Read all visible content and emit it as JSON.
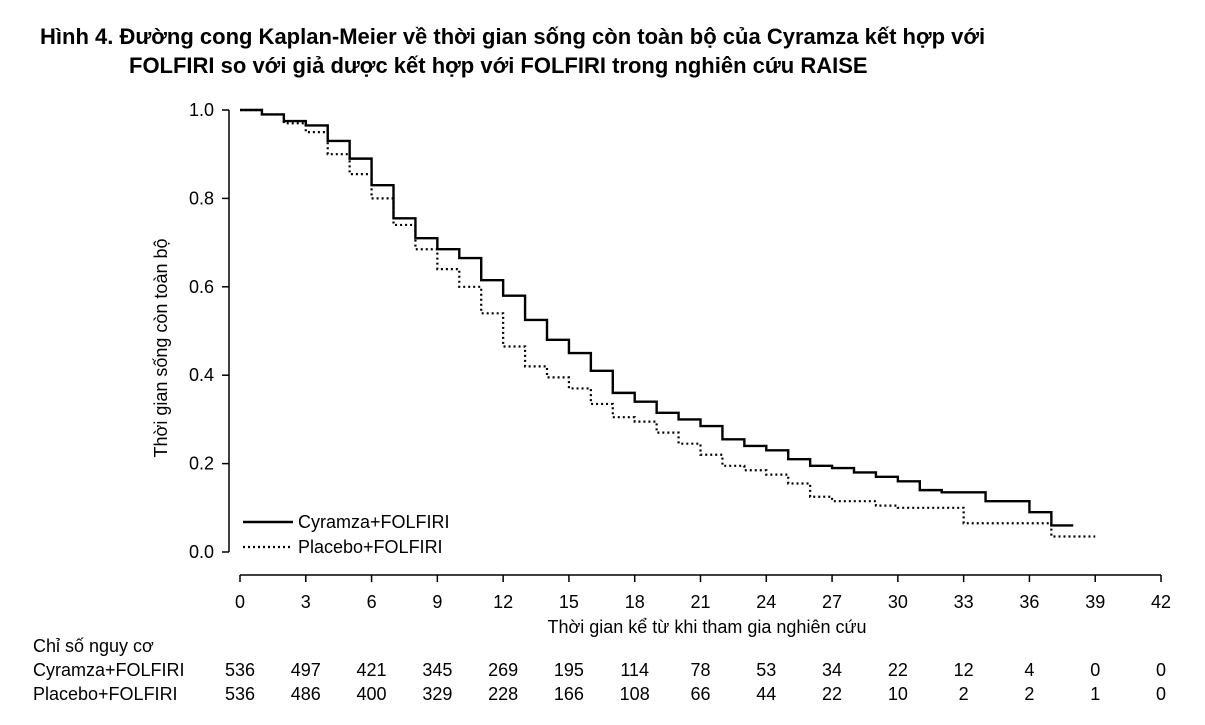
{
  "title": {
    "line1": "Hình 4. Đường cong Kaplan-Meier về thời gian sống còn toàn bộ của Cyramza kết hợp với",
    "line2": "FOLFIRI so với giả dược kết hợp với FOLFIRI trong nghiên cứu RAISE"
  },
  "chart_data": {
    "type": "line",
    "step": true,
    "xlabel": "Thời gian kể từ khi tham gia nghiên cứu",
    "ylabel": "Thời gian sống còn toàn bộ",
    "xlim": [
      0,
      42
    ],
    "ylim": [
      0,
      1.0
    ],
    "x_ticks": [
      "0",
      "3",
      "6",
      "9",
      "12",
      "15",
      "18",
      "21",
      "24",
      "27",
      "30",
      "33",
      "36",
      "39",
      "42"
    ],
    "y_ticks": [
      "0.0",
      "0.2",
      "0.4",
      "0.6",
      "0.8",
      "1.0"
    ],
    "legend_position": "bottom-left",
    "series": [
      {
        "name": "Cyramza+FOLFIRI",
        "style": "solid",
        "points": [
          [
            0,
            1.0
          ],
          [
            0.5,
            1.0
          ],
          [
            1,
            0.99
          ],
          [
            2,
            0.975
          ],
          [
            3,
            0.965
          ],
          [
            4,
            0.93
          ],
          [
            5,
            0.89
          ],
          [
            6,
            0.83
          ],
          [
            7,
            0.755
          ],
          [
            8,
            0.71
          ],
          [
            9,
            0.685
          ],
          [
            10,
            0.665
          ],
          [
            11,
            0.615
          ],
          [
            12,
            0.58
          ],
          [
            13,
            0.525
          ],
          [
            14,
            0.48
          ],
          [
            15,
            0.45
          ],
          [
            16,
            0.41
          ],
          [
            17,
            0.36
          ],
          [
            18,
            0.34
          ],
          [
            19,
            0.315
          ],
          [
            20,
            0.3
          ],
          [
            21,
            0.285
          ],
          [
            22,
            0.255
          ],
          [
            23,
            0.24
          ],
          [
            24,
            0.23
          ],
          [
            25,
            0.21
          ],
          [
            26,
            0.195
          ],
          [
            27,
            0.19
          ],
          [
            28,
            0.18
          ],
          [
            29,
            0.17
          ],
          [
            30,
            0.16
          ],
          [
            31,
            0.14
          ],
          [
            32,
            0.135
          ],
          [
            33,
            0.135
          ],
          [
            34,
            0.115
          ],
          [
            35,
            0.115
          ],
          [
            36,
            0.09
          ],
          [
            37,
            0.06
          ],
          [
            38,
            0.06
          ]
        ]
      },
      {
        "name": "Placebo+FOLFIRI",
        "style": "dotted",
        "points": [
          [
            0,
            1.0
          ],
          [
            1,
            0.99
          ],
          [
            2,
            0.97
          ],
          [
            3,
            0.95
          ],
          [
            4,
            0.9
          ],
          [
            5,
            0.855
          ],
          [
            6,
            0.8
          ],
          [
            7,
            0.74
          ],
          [
            8,
            0.685
          ],
          [
            9,
            0.64
          ],
          [
            10,
            0.6
          ],
          [
            11,
            0.54
          ],
          [
            12,
            0.465
          ],
          [
            13,
            0.42
          ],
          [
            14,
            0.395
          ],
          [
            15,
            0.37
          ],
          [
            16,
            0.335
          ],
          [
            17,
            0.305
          ],
          [
            18,
            0.295
          ],
          [
            19,
            0.27
          ],
          [
            20,
            0.245
          ],
          [
            21,
            0.22
          ],
          [
            22,
            0.195
          ],
          [
            23,
            0.185
          ],
          [
            24,
            0.175
          ],
          [
            25,
            0.155
          ],
          [
            26,
            0.125
          ],
          [
            27,
            0.115
          ],
          [
            28,
            0.115
          ],
          [
            29,
            0.105
          ],
          [
            30,
            0.1
          ],
          [
            31,
            0.1
          ],
          [
            32,
            0.1
          ],
          [
            33,
            0.065
          ],
          [
            34,
            0.065
          ],
          [
            35,
            0.065
          ],
          [
            36,
            0.065
          ],
          [
            37,
            0.035
          ],
          [
            39,
            0.035
          ]
        ]
      }
    ]
  },
  "risk_table": {
    "header": "Chỉ số nguy cơ",
    "rows": [
      {
        "label": "Cyramza+FOLFIRI",
        "values": [
          "536",
          "497",
          "421",
          "345",
          "269",
          "195",
          "114",
          "78",
          "53",
          "34",
          "22",
          "12",
          "4",
          "0",
          "0"
        ]
      },
      {
        "label": "Placebo+FOLFIRI",
        "values": [
          "536",
          "486",
          "400",
          "329",
          "228",
          "166",
          "108",
          "66",
          "44",
          "22",
          "10",
          "2",
          "2",
          "1",
          "0"
        ]
      }
    ]
  }
}
